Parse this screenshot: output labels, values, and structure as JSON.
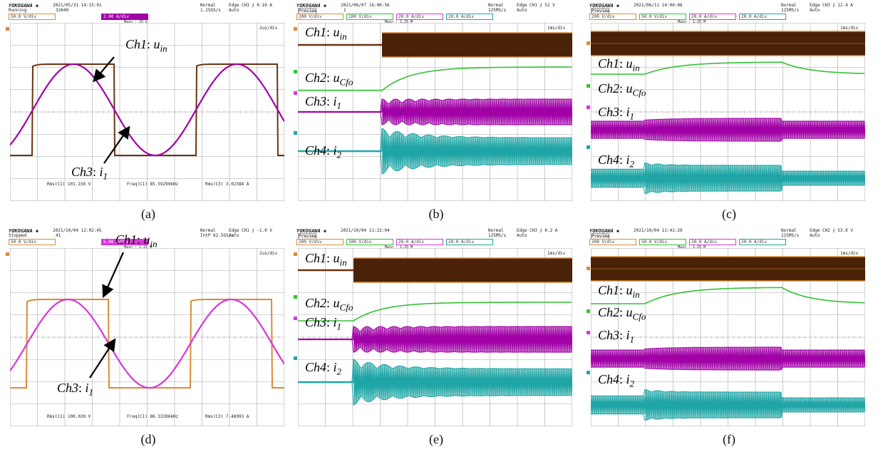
{
  "colors": {
    "brown": "#6b3410",
    "orange": "#d98b3a",
    "purple": "#a000a6",
    "magenta": "#d836d8",
    "green": "#33c233",
    "teal": "#1fa5a5",
    "grid": "#a8a8a8"
  },
  "panels": [
    {
      "id": "a",
      "caption": "(a)",
      "brand": "YOKOGAWA ◆",
      "datetime": "2021/05/31 14:15:01",
      "status": "Running",
      "count": "32640",
      "acq_mode": "Normal",
      "rate": "1.25GS/s",
      "trigger": "Edge CH3 ⨍ 0.10 A",
      "auto": "Auto",
      "time_div": "2us/div",
      "main": "Main : 25 k",
      "ch_tabs": [
        "50.0 V/div",
        "2.00 A/div"
      ],
      "measurements": [
        "Rms(C1)  101.156 V",
        "Freq(C1)  85.59299kHz",
        "Rms(C3)  3.02384 A"
      ],
      "labels": [
        {
          "ch": "Ch1",
          "sym": "u",
          "sub": "in"
        },
        {
          "ch": "Ch3",
          "sym": "i",
          "sub": "1"
        }
      ]
    },
    {
      "id": "b",
      "caption": "(b)",
      "brand": "YOKOGAWA ◆",
      "datetime": "2021/06/07 16:00:56",
      "status": "Preview",
      "count": "1",
      "acq_mode": "Normal",
      "rate": "125MS/s",
      "trigger": "Edge CH1 ⨍ 52 V",
      "auto": "Auto",
      "time_div": "1ms/div",
      "main": "Main : 1.25 M",
      "ch_tabs": [
        "200 V/div",
        "100 V/div",
        "20.0 A/div",
        "20.0 A/div"
      ],
      "labels": [
        {
          "ch": "Ch1",
          "sym": "u",
          "sub": "in"
        },
        {
          "ch": "Ch2",
          "sym": "u",
          "sub": "Cfo"
        },
        {
          "ch": "Ch3",
          "sym": "i",
          "sub": "1"
        },
        {
          "ch": "Ch4",
          "sym": "i",
          "sub": "2"
        }
      ]
    },
    {
      "id": "c",
      "caption": "(c)",
      "brand": "YOKOGAWA ◆",
      "datetime": "2021/06/11 14:04:06",
      "status": "Preview",
      "count": "",
      "acq_mode": "Normal",
      "rate": "125MS/s",
      "trigger": "Edge CH3 ⨍ 12.4 A",
      "auto": "Auto",
      "time_div": "1ms/div",
      "main": "Main : 1.25 M",
      "ch_tabs": [
        "200 V/div",
        "50.0 V/div",
        "20.0 A/div",
        "20.0 A/div"
      ],
      "labels": [
        {
          "ch": "Ch1",
          "sym": "u",
          "sub": "in"
        },
        {
          "ch": "Ch2",
          "sym": "u",
          "sub": "Cfo"
        },
        {
          "ch": "Ch3",
          "sym": "i",
          "sub": "1"
        },
        {
          "ch": "Ch4",
          "sym": "i",
          "sub": "2"
        }
      ]
    },
    {
      "id": "d",
      "caption": "(d)",
      "brand": "YOKOGAWA ◆",
      "datetime": "2021/10/04 12:02:45",
      "status": "Stopped",
      "count": "41",
      "acq_mode": "Normal",
      "rate": "IntP 62.5GS/s",
      "trigger": "Edge CH1 ⨍ -1.0 V",
      "auto": "Auto",
      "time_div": "2us/div",
      "main": "Main : 1.25 M",
      "ch_tabs": [
        "50.0 V/div",
        "5.00 A/div"
      ],
      "measurements": [
        "Rms(C1)  100.020 V",
        "Freq(C1)  86.33396kHz",
        "Rms(C3)  7.48993 A"
      ],
      "labels": [
        {
          "ch": "Ch1",
          "sym": "u",
          "sub": "in"
        },
        {
          "ch": "Ch3",
          "sym": "i",
          "sub": "1"
        }
      ]
    },
    {
      "id": "e",
      "caption": "(e)",
      "brand": "YOKOGAWA ◆",
      "datetime": "2021/10/04 11:22:04",
      "status": "Preview",
      "count": "",
      "acq_mode": "Normal",
      "rate": "125MS/s",
      "trigger": "Edge CH3 ⨍ 0.2 A",
      "auto": "Auto",
      "time_div": "1ms/div",
      "main": "Main : 1.25 M",
      "ch_tabs": [
        "200 V/div",
        "100 V/div",
        "20.0 A/div",
        "20.0 A/div"
      ],
      "labels": [
        {
          "ch": "Ch1",
          "sym": "u",
          "sub": "in"
        },
        {
          "ch": "Ch2",
          "sym": "u",
          "sub": "Cfo"
        },
        {
          "ch": "Ch3",
          "sym": "i",
          "sub": "1"
        },
        {
          "ch": "Ch4",
          "sym": "i",
          "sub": "2"
        }
      ]
    },
    {
      "id": "f",
      "caption": "(f)",
      "brand": "YOKOGAWA ◆",
      "datetime": "2021/10/04 11:41:20",
      "status": "Preview",
      "count": "",
      "acq_mode": "Normal",
      "rate": "125MS/s",
      "trigger": "Edge CH2 ⨍ 53.0 V",
      "auto": "Auto",
      "time_div": "1ms/div",
      "main": "Main : 1.25 M",
      "ch_tabs": [
        "200 V/div",
        "50.0 V/div",
        "20.0 A/div",
        "20.0 A/div"
      ],
      "labels": [
        {
          "ch": "Ch1",
          "sym": "u",
          "sub": "in"
        },
        {
          "ch": "Ch2",
          "sym": "u",
          "sub": "Cfo"
        },
        {
          "ch": "Ch3",
          "sym": "i",
          "sub": "1"
        },
        {
          "ch": "Ch4",
          "sym": "i",
          "sub": "2"
        }
      ]
    }
  ]
}
